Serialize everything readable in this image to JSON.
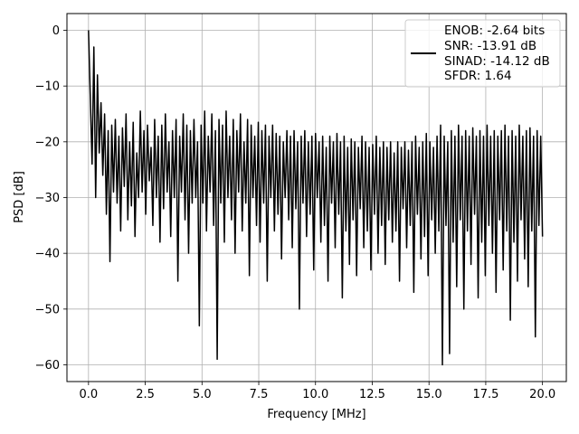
{
  "chart_data": {
    "type": "line",
    "title": "",
    "xlabel": "Frequency [MHz]",
    "ylabel": "PSD [dB]",
    "xlim": [
      -0.95,
      21.05
    ],
    "ylim": [
      -63.0,
      3.0
    ],
    "x_ticks": [
      0.0,
      2.5,
      5.0,
      7.5,
      10.0,
      12.5,
      15.0,
      17.5,
      20.0
    ],
    "x_tick_labels": [
      "0.0",
      "2.5",
      "5.0",
      "7.5",
      "10.0",
      "12.5",
      "15.0",
      "17.5",
      "20.0"
    ],
    "y_ticks": [
      0,
      -10,
      -20,
      -30,
      -40,
      -50,
      -60
    ],
    "y_tick_labels": [
      "0",
      "−10",
      "−20",
      "−30",
      "−40",
      "−50",
      "−60"
    ],
    "grid": true,
    "legend_position": "top-right",
    "line_color": "#000000",
    "series": [
      {
        "x_range": [
          0.0,
          20.0
        ],
        "values": [
          0.0,
          -12.0,
          -24.0,
          -3.0,
          -30.0,
          -8.0,
          -22.0,
          -13.0,
          -26.0,
          -15.0,
          -33.0,
          -18.0,
          -41.5,
          -17.0,
          -29.0,
          -16.0,
          -31.0,
          -19.0,
          -36.0,
          -17.5,
          -28.0,
          -15.0,
          -34.0,
          -20.0,
          -31.5,
          -16.5,
          -37.0,
          -22.0,
          -30.0,
          -14.5,
          -29.0,
          -18.0,
          -33.0,
          -17.0,
          -27.0,
          -21.0,
          -35.0,
          -16.0,
          -30.0,
          -19.0,
          -38.0,
          -17.0,
          -32.0,
          -15.0,
          -29.0,
          -20.0,
          -37.0,
          -18.0,
          -30.0,
          -16.0,
          -45.0,
          -19.0,
          -29.0,
          -15.0,
          -34.0,
          -17.0,
          -40.0,
          -18.0,
          -31.0,
          -16.0,
          -30.0,
          -20.0,
          -53.0,
          -17.0,
          -31.0,
          -14.5,
          -36.0,
          -19.0,
          -29.0,
          -15.0,
          -35.0,
          -18.0,
          -59.0,
          -16.0,
          -31.0,
          -17.0,
          -38.0,
          -14.5,
          -30.0,
          -19.0,
          -34.0,
          -16.0,
          -40.0,
          -18.0,
          -29.0,
          -15.0,
          -36.0,
          -20.0,
          -31.0,
          -16.0,
          -44.0,
          -17.0,
          -30.0,
          -19.0,
          -35.0,
          -16.5,
          -38.0,
          -18.0,
          -31.0,
          -17.0,
          -45.0,
          -19.0,
          -30.0,
          -17.0,
          -36.0,
          -18.5,
          -33.0,
          -19.0,
          -41.0,
          -20.0,
          -30.0,
          -18.0,
          -34.0,
          -19.0,
          -39.0,
          -18.0,
          -32.0,
          -20.0,
          -50.0,
          -19.0,
          -31.0,
          -18.0,
          -37.0,
          -20.0,
          -33.0,
          -19.0,
          -43.0,
          -18.5,
          -30.0,
          -20.0,
          -38.0,
          -19.0,
          -35.0,
          -21.0,
          -45.0,
          -19.0,
          -31.0,
          -20.0,
          -39.0,
          -18.5,
          -33.0,
          -20.0,
          -48.0,
          -19.0,
          -36.0,
          -21.0,
          -42.0,
          -19.5,
          -34.0,
          -20.0,
          -44.0,
          -21.0,
          -32.0,
          -19.0,
          -39.0,
          -20.0,
          -36.0,
          -21.0,
          -43.0,
          -20.5,
          -33.0,
          -19.0,
          -40.0,
          -21.0,
          -35.0,
          -20.0,
          -42.0,
          -21.0,
          -34.0,
          -20.0,
          -38.0,
          -22.0,
          -36.0,
          -20.0,
          -45.0,
          -21.0,
          -32.0,
          -20.0,
          -39.0,
          -21.5,
          -35.0,
          -20.0,
          -47.0,
          -19.0,
          -33.0,
          -21.0,
          -41.0,
          -20.0,
          -37.0,
          -18.5,
          -44.0,
          -20.0,
          -34.0,
          -21.0,
          -40.0,
          -19.0,
          -36.0,
          -17.0,
          -60.0,
          -19.0,
          -35.0,
          -20.0,
          -58.0,
          -18.0,
          -38.0,
          -19.0,
          -46.0,
          -17.0,
          -34.0,
          -19.0,
          -50.0,
          -18.0,
          -36.0,
          -19.0,
          -42.0,
          -17.5,
          -33.0,
          -19.0,
          -48.0,
          -18.0,
          -38.0,
          -19.0,
          -44.0,
          -17.0,
          -35.0,
          -19.0,
          -40.0,
          -18.0,
          -47.0,
          -19.0,
          -34.0,
          -18.0,
          -43.0,
          -17.0,
          -36.0,
          -19.0,
          -52.0,
          -18.0,
          -38.0,
          -19.0,
          -45.0,
          -17.0,
          -34.0,
          -19.0,
          -41.0,
          -18.0,
          -46.0,
          -17.5,
          -36.0,
          -19.0,
          -55.0,
          -18.0,
          -35.0,
          -19.0,
          -37.0
        ]
      }
    ]
  },
  "legend": {
    "entries": [
      "ENOB: -2.64 bits",
      "SNR: -13.91 dB",
      "SINAD: -14.12 dB",
      "SFDR: 1.64"
    ]
  }
}
